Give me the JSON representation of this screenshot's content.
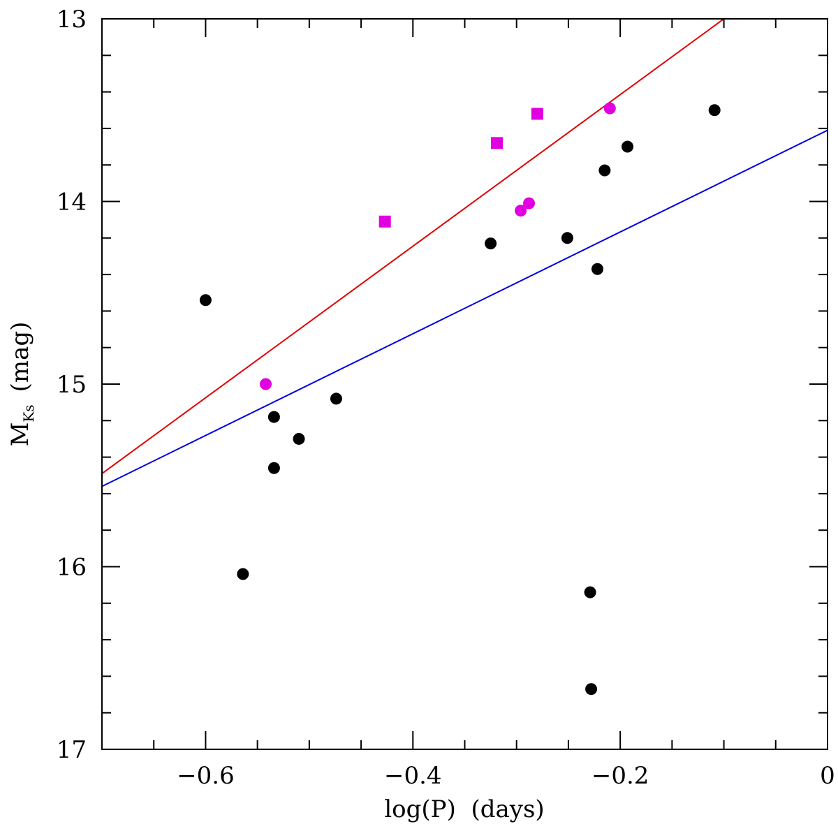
{
  "chart_data": {
    "type": "scatter",
    "title": "",
    "xlabel": "log(P)  (days)",
    "ylabel_main": "M",
    "ylabel_sub": "Ks",
    "ylabel_unit": "(mag)",
    "xlim": [
      -0.7,
      0.0
    ],
    "ylim": [
      17,
      13
    ],
    "y_inverted": true,
    "grid": false,
    "xticks_major": [
      -0.6,
      -0.4,
      -0.2,
      0
    ],
    "xtick_labels": [
      "−0.6",
      "−0.4",
      "−0.2",
      "0"
    ],
    "yticks_major": [
      13,
      14,
      15,
      16,
      17
    ],
    "ytick_labels": [
      "13",
      "14",
      "15",
      "16",
      "17"
    ],
    "minor_step_x": 0.05,
    "minor_step_y": 0.2,
    "series": [
      {
        "name": "black circles",
        "marker": "circle",
        "color": "#000000",
        "points": [
          [
            -0.6,
            14.54
          ],
          [
            -0.564,
            16.04
          ],
          [
            -0.534,
            15.18
          ],
          [
            -0.534,
            15.46
          ],
          [
            -0.51,
            15.3
          ],
          [
            -0.474,
            15.08
          ],
          [
            -0.325,
            14.23
          ],
          [
            -0.251,
            14.2
          ],
          [
            -0.222,
            14.37
          ],
          [
            -0.229,
            16.14
          ],
          [
            -0.228,
            16.67
          ],
          [
            -0.215,
            13.83
          ],
          [
            -0.193,
            13.7
          ],
          [
            -0.109,
            13.5
          ]
        ]
      },
      {
        "name": "magenta circles",
        "marker": "circle",
        "color": "#e000e0",
        "points": [
          [
            -0.542,
            15.0
          ],
          [
            -0.296,
            14.05
          ],
          [
            -0.288,
            14.01
          ],
          [
            -0.21,
            13.49
          ]
        ]
      },
      {
        "name": "magenta squares",
        "marker": "square",
        "color": "#e000e0",
        "points": [
          [
            -0.427,
            14.11
          ],
          [
            -0.319,
            13.68
          ],
          [
            -0.28,
            13.52
          ]
        ]
      }
    ],
    "lines": [
      {
        "name": "red fit",
        "color": "#e00000",
        "x": [
          -0.7,
          -0.1
        ],
        "y": [
          15.49,
          13.0
        ]
      },
      {
        "name": "blue fit",
        "color": "#0000e0",
        "x": [
          -0.7,
          0.0
        ],
        "y": [
          15.56,
          13.61
        ]
      }
    ]
  }
}
